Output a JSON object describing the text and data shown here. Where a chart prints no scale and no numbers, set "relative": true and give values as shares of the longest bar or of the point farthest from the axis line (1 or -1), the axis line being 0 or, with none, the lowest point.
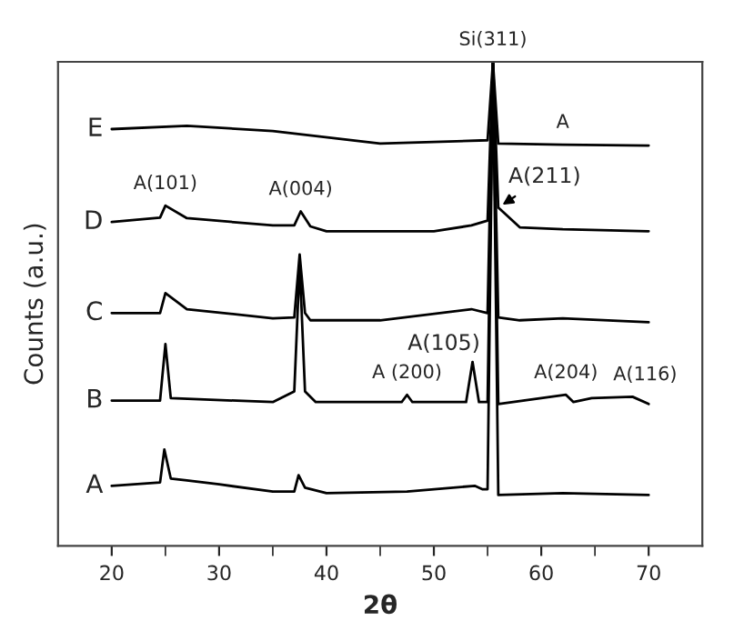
{
  "chart_data": {
    "type": "line",
    "relative": true,
    "xlabel": "2θ",
    "ylabel": "Counts (a.u.)",
    "xlim": [
      15,
      75
    ],
    "xticks": [
      20,
      {
        "value": 25,
        "label": null
      },
      30,
      {
        "value": 35,
        "label": null
      },
      40,
      {
        "value": 45,
        "label": null
      },
      50,
      {
        "value": 55,
        "label": null
      },
      60,
      {
        "value": 65,
        "label": null
      },
      70
    ],
    "grid": false,
    "legend": false,
    "marker": "none",
    "line_style": "solid",
    "series": [
      {
        "name": "A",
        "color": "#000000",
        "x": [
          20,
          24.5,
          24.9,
          25.5,
          27,
          30,
          35,
          37,
          37.4,
          38,
          40,
          47.5,
          53.8,
          54.5,
          55.0,
          55.5,
          56,
          62,
          70
        ],
        "values": [
          0.124,
          0.131,
          0.199,
          0.139,
          0.135,
          0.127,
          0.112,
          0.112,
          0.146,
          0.12,
          0.109,
          0.112,
          0.124,
          0.117,
          0.117,
          1,
          0.105,
          0.109,
          0.105
        ]
      },
      {
        "name": "B",
        "color": "#000000",
        "x": [
          20,
          24.5,
          25,
          25.5,
          35,
          37,
          37.5,
          38,
          39,
          47,
          47.5,
          48,
          53,
          53.6,
          54.2,
          55,
          55.5,
          56,
          62.3,
          63,
          64.7,
          68.5,
          70
        ],
        "values": [
          0.3,
          0.3,
          0.417,
          0.305,
          0.297,
          0.319,
          0.583,
          0.319,
          0.297,
          0.297,
          0.312,
          0.297,
          0.297,
          0.38,
          0.297,
          0.297,
          1,
          0.293,
          0.312,
          0.297,
          0.305,
          0.308,
          0.293
        ]
      },
      {
        "name": "C",
        "color": "#000000",
        "x": [
          20,
          24.5,
          25,
          27,
          35,
          37,
          37.5,
          38,
          38.5,
          45,
          53.5,
          55,
          55.5,
          56,
          58,
          62,
          70
        ],
        "values": [
          0.481,
          0.481,
          0.522,
          0.489,
          0.47,
          0.472,
          0.602,
          0.481,
          0.466,
          0.466,
          0.489,
          0.481,
          1,
          0.472,
          0.466,
          0.47,
          0.462
        ]
      },
      {
        "name": "D",
        "color": "#000000",
        "x": [
          20,
          24.5,
          25,
          27,
          35,
          37,
          37.6,
          38.5,
          40,
          50,
          53.5,
          55,
          55.5,
          56,
          58,
          62,
          70
        ],
        "values": [
          0.669,
          0.678,
          0.703,
          0.677,
          0.662,
          0.662,
          0.691,
          0.66,
          0.65,
          0.65,
          0.662,
          0.672,
          1,
          0.699,
          0.658,
          0.654,
          0.65
        ]
      },
      {
        "name": "E",
        "color": "#000000",
        "x": [
          20,
          27,
          35,
          45,
          55,
          55.5,
          56,
          62,
          70
        ],
        "values": [
          0.861,
          0.868,
          0.857,
          0.831,
          0.838,
          1,
          0.831,
          0.829,
          0.827
        ]
      }
    ],
    "annotations": [
      {
        "text": "Si(311)",
        "x": 55.5,
        "y": 1
      },
      {
        "text": "A",
        "x": 62,
        "y": 0.829
      },
      {
        "text": "A(101)",
        "x": 25,
        "y": 0.703
      },
      {
        "text": "A(004)",
        "x": 37.6,
        "y": 0.691
      },
      {
        "text": "A(211)",
        "x": 56,
        "y": 0.699
      },
      {
        "text": "A (200)",
        "x": 47.5,
        "y": 0.312
      },
      {
        "text": "A(105)",
        "x": 53.6,
        "y": 0.38
      },
      {
        "text": "A(204)",
        "x": 62.3,
        "y": 0.312
      },
      {
        "text": "A(116)",
        "x": 68.5,
        "y": 0.308
      }
    ]
  }
}
